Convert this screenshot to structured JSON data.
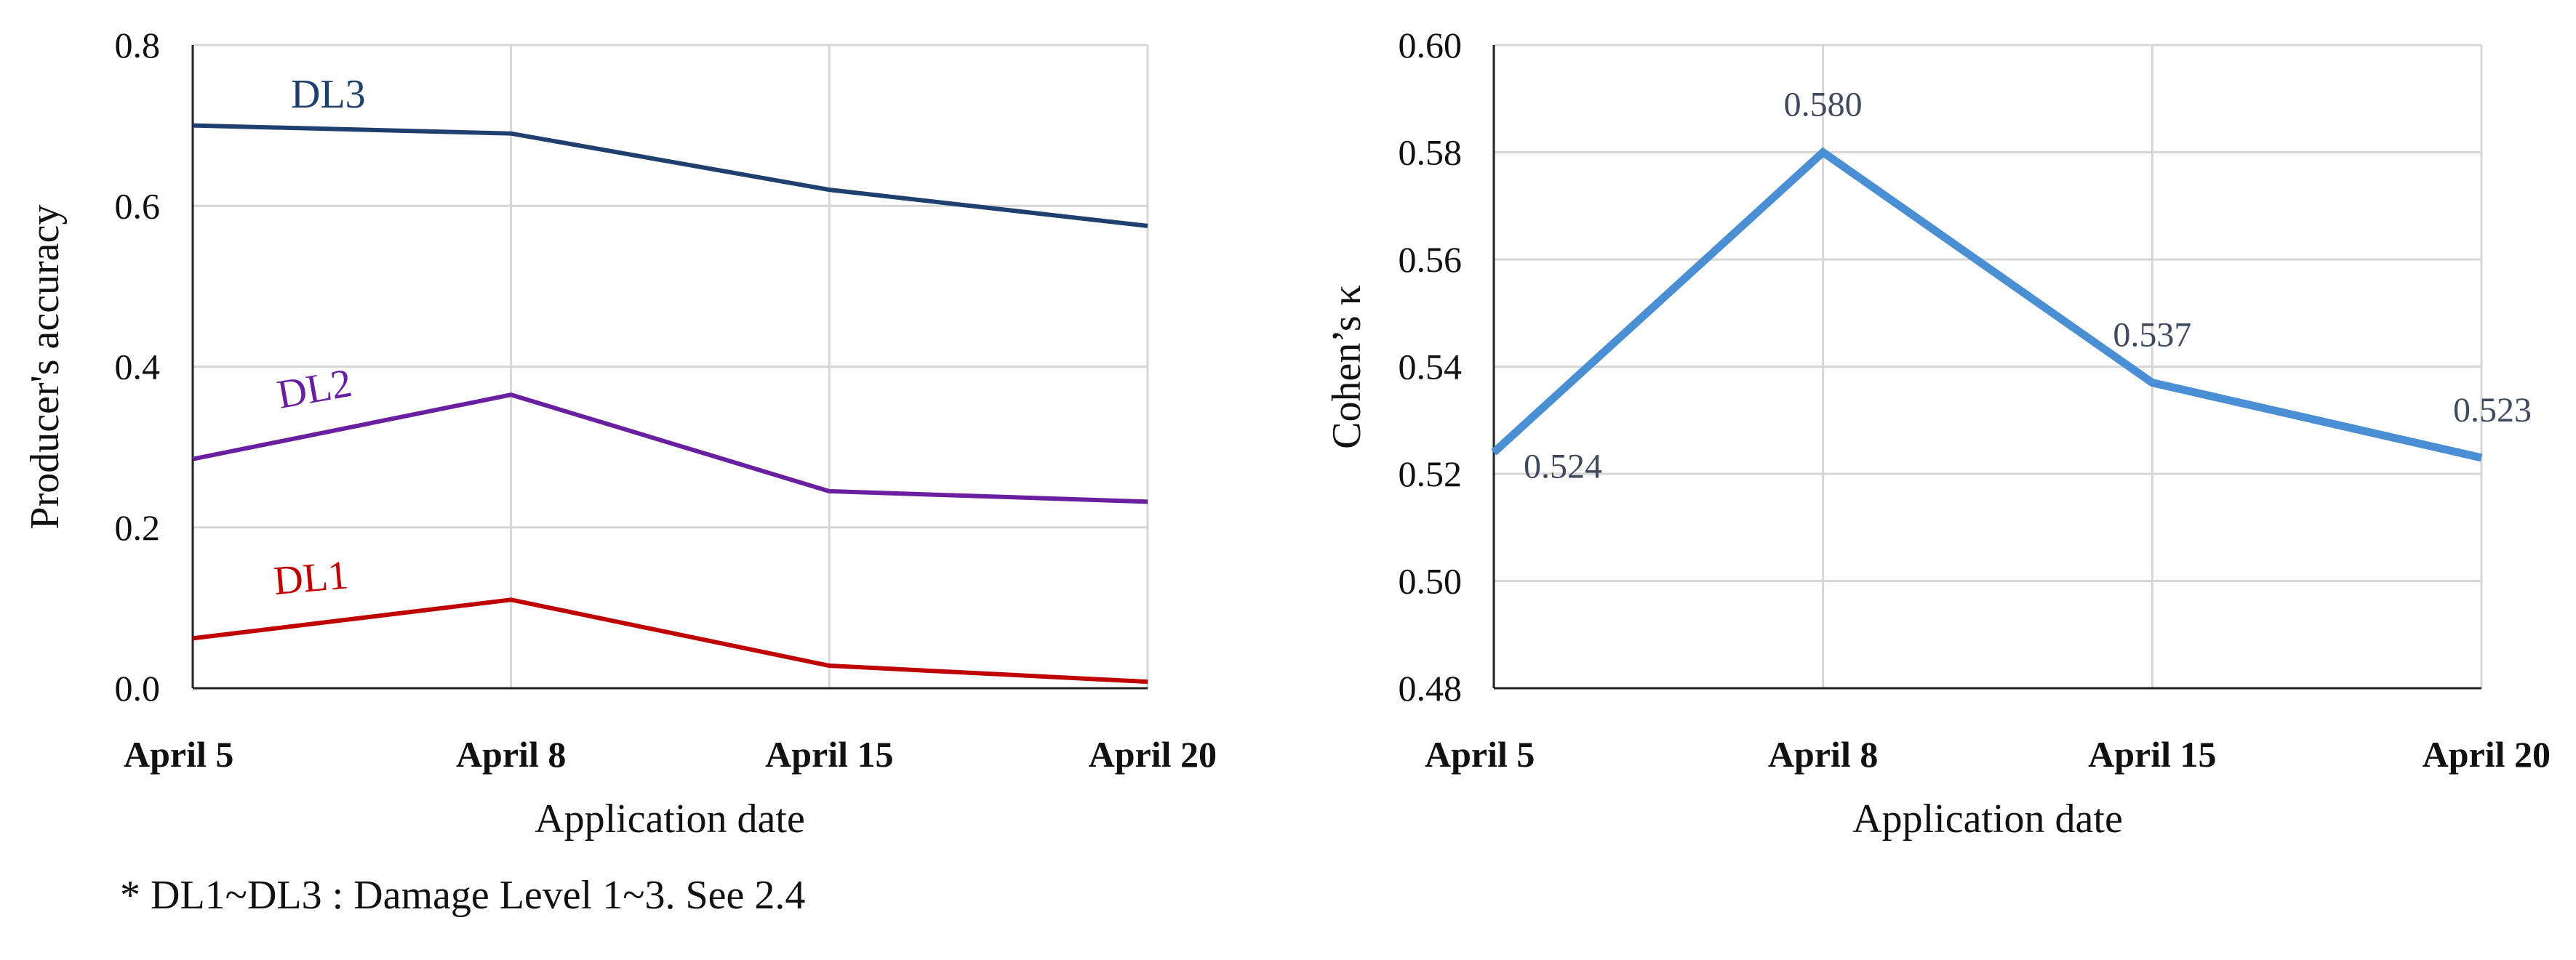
{
  "chart_data": [
    {
      "type": "line",
      "categories": [
        "April 5",
        "April 8",
        "April 15",
        "April 20"
      ],
      "xlabel": "Application  date",
      "ylabel": "Producer's accuracy",
      "ylim": [
        0,
        0.8
      ],
      "yticks": [
        "0.0",
        "0.2",
        "0.4",
        "0.6",
        "0.8"
      ],
      "grid": true,
      "legend": "inline labels",
      "series": [
        {
          "name": "DL3",
          "color": "#1f3f6e",
          "values": [
            0.7,
            0.69,
            0.62,
            0.575
          ]
        },
        {
          "name": "DL2",
          "color": "#6a1fa0",
          "values": [
            0.285,
            0.365,
            0.245,
            0.232
          ]
        },
        {
          "name": "DL1",
          "color": "#c00000",
          "values": [
            0.062,
            0.11,
            0.028,
            0.008
          ]
        }
      ]
    },
    {
      "type": "line",
      "categories": [
        "April 5",
        "April 8",
        "April 15",
        "April 20"
      ],
      "xlabel": "Application  date",
      "ylabel": "Cohen’s κ",
      "ylim": [
        0.48,
        0.6
      ],
      "yticks": [
        "0.48",
        "0.50",
        "0.52",
        "0.54",
        "0.56",
        "0.58",
        "0.60"
      ],
      "grid": true,
      "series": [
        {
          "color": "#4a8fd4",
          "values": [
            0.524,
            0.58,
            0.537,
            0.523
          ],
          "labels": [
            "0.524",
            "0.580",
            "0.537",
            "0.523"
          ]
        }
      ]
    }
  ],
  "footnote": "* DL1~DL3 : Damage Level 1~3. See 2.4"
}
